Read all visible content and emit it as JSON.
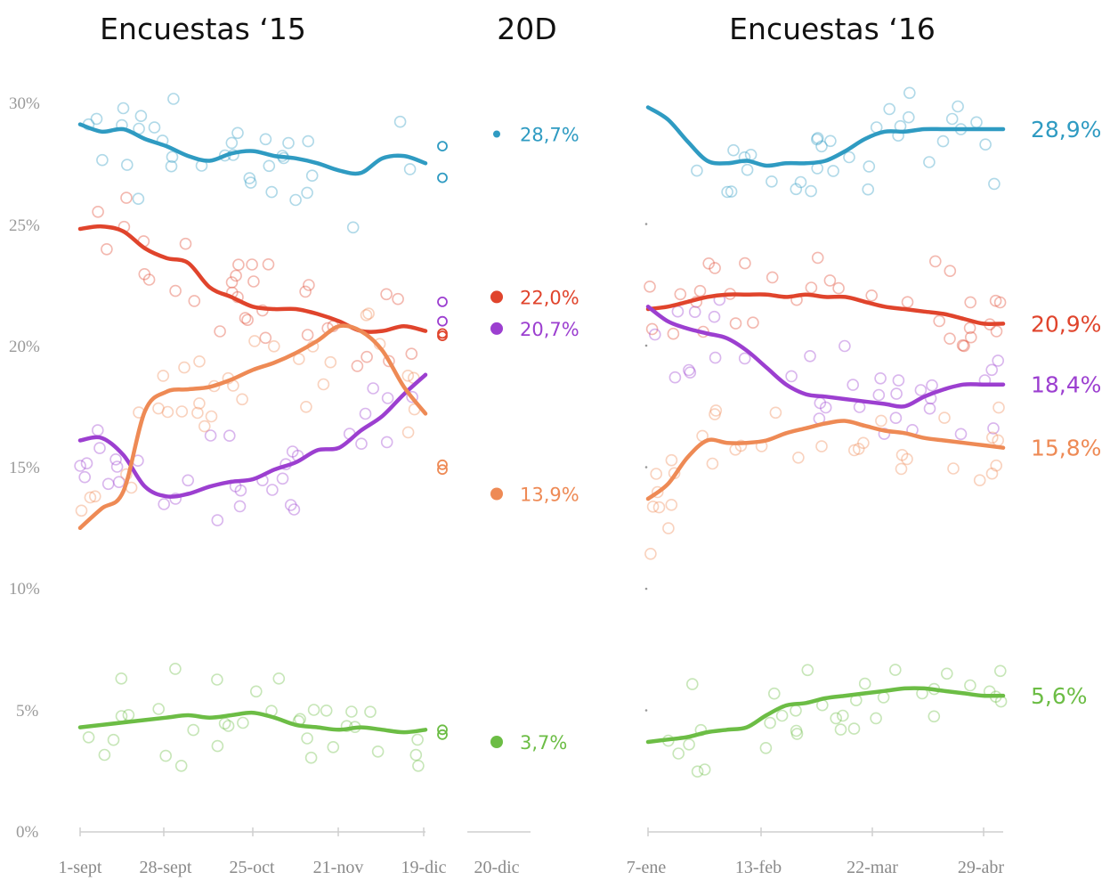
{
  "chart_data": {
    "type": "line",
    "ylim": [
      0,
      30
    ],
    "yticks": [
      "0%",
      "5%",
      "10%",
      "15%",
      "20%",
      "25%",
      "30%"
    ],
    "colors": {
      "blue": "#2f9bc2",
      "red": "#e0442c",
      "purple": "#9c3fd0",
      "orange": "#ee8a55",
      "green": "#6cbd45"
    },
    "panels": [
      {
        "id": "p15",
        "title": "Encuestas ‘15",
        "xticks": [
          "1-sept",
          "28-sept",
          "25-oct",
          "21-nov",
          "19-dic"
        ],
        "x": [
          "1-sept",
          "8-sept",
          "15-sept",
          "22-sept",
          "28-sept",
          "6-oct",
          "13-oct",
          "20-oct",
          "25-oct",
          "1-nov",
          "8-nov",
          "15-nov",
          "21-nov",
          "28-nov",
          "5-dic",
          "12-dic",
          "19-dic"
        ],
        "series": [
          {
            "key": "blue",
            "values": [
              29.1,
              28.8,
              28.9,
              28.5,
              28.2,
              27.8,
              27.6,
              27.9,
              28.0,
              27.8,
              27.7,
              27.5,
              27.2,
              27.1,
              27.7,
              27.8,
              27.5
            ]
          },
          {
            "key": "red",
            "values": [
              24.8,
              24.9,
              24.7,
              24.0,
              23.6,
              23.4,
              22.4,
              22.0,
              21.6,
              21.5,
              21.5,
              21.3,
              21.0,
              20.6,
              20.6,
              20.8,
              20.6
            ]
          },
          {
            "key": "purple",
            "values": [
              16.1,
              16.2,
              15.5,
              14.2,
              13.8,
              13.9,
              14.2,
              14.4,
              14.5,
              14.9,
              15.2,
              15.7,
              15.8,
              16.5,
              17.1,
              18.0,
              18.8
            ]
          },
          {
            "key": "orange",
            "values": [
              12.5,
              13.3,
              14.0,
              17.3,
              18.1,
              18.2,
              18.3,
              18.6,
              19.0,
              19.3,
              19.7,
              20.2,
              20.8,
              20.6,
              19.8,
              18.3,
              17.2
            ]
          },
          {
            "key": "green",
            "values": [
              4.3,
              4.4,
              4.5,
              4.6,
              4.7,
              4.8,
              4.7,
              4.8,
              4.9,
              4.7,
              4.4,
              4.3,
              4.2,
              4.3,
              4.2,
              4.1,
              4.2
            ]
          }
        ]
      },
      {
        "id": "p20d",
        "title": "20D",
        "xticks": [
          "20-dic"
        ],
        "results": [
          {
            "key": "blue",
            "value": 28.7,
            "label": "28,7%"
          },
          {
            "key": "red",
            "value": 22.0,
            "label": "22,0%"
          },
          {
            "key": "purple",
            "value": 20.7,
            "label": "20,7%"
          },
          {
            "key": "orange",
            "value": 13.9,
            "label": "13,9%"
          },
          {
            "key": "green",
            "value": 3.7,
            "label": "3,7%"
          }
        ]
      },
      {
        "id": "p16",
        "title": "Encuestas ‘16",
        "xticks": [
          "7-ene",
          "13-feb",
          "22-mar",
          "29-abr"
        ],
        "x": [
          "7-ene",
          "15-ene",
          "24-ene",
          "2-feb",
          "9-feb",
          "13-feb",
          "20-feb",
          "27-feb",
          "4-mar",
          "10-mar",
          "16-mar",
          "22-mar",
          "28-mar",
          "4-abr",
          "10-abr",
          "16-abr",
          "22-abr",
          "29-abr",
          "5-may"
        ],
        "series": [
          {
            "key": "blue",
            "values": [
              29.8,
              29.3,
              28.4,
              27.6,
              27.5,
              27.6,
              27.4,
              27.5,
              27.5,
              27.6,
              28.0,
              28.5,
              28.8,
              28.8,
              28.9,
              28.9,
              28.9,
              28.9,
              28.9
            ]
          },
          {
            "key": "red",
            "values": [
              21.5,
              21.6,
              21.8,
              22.0,
              22.1,
              22.1,
              22.1,
              22.0,
              22.1,
              22.0,
              22.0,
              21.8,
              21.6,
              21.5,
              21.4,
              21.3,
              21.1,
              20.9,
              20.9
            ]
          },
          {
            "key": "purple",
            "values": [
              21.6,
              21.0,
              20.7,
              20.5,
              20.3,
              19.8,
              19.1,
              18.4,
              18.0,
              17.9,
              17.8,
              17.7,
              17.6,
              17.5,
              17.9,
              18.2,
              18.4,
              18.4,
              18.4
            ]
          },
          {
            "key": "orange",
            "values": [
              13.7,
              14.3,
              15.4,
              16.1,
              16.0,
              16.0,
              16.1,
              16.4,
              16.6,
              16.8,
              16.9,
              16.7,
              16.5,
              16.4,
              16.2,
              16.1,
              16.0,
              15.9,
              15.8
            ]
          },
          {
            "key": "green",
            "values": [
              3.7,
              3.8,
              3.9,
              4.1,
              4.2,
              4.3,
              4.8,
              5.2,
              5.3,
              5.5,
              5.6,
              5.7,
              5.8,
              5.9,
              5.9,
              5.8,
              5.7,
              5.6,
              5.6
            ]
          }
        ],
        "end_labels": [
          {
            "key": "blue",
            "value": 28.9,
            "label": "28,9%"
          },
          {
            "key": "red",
            "value": 20.9,
            "label": "20,9%"
          },
          {
            "key": "purple",
            "value": 18.4,
            "label": "18,4%"
          },
          {
            "key": "orange",
            "value": 15.8,
            "label": "15,8%"
          },
          {
            "key": "green",
            "value": 5.6,
            "label": "5,6%"
          }
        ]
      }
    ]
  }
}
